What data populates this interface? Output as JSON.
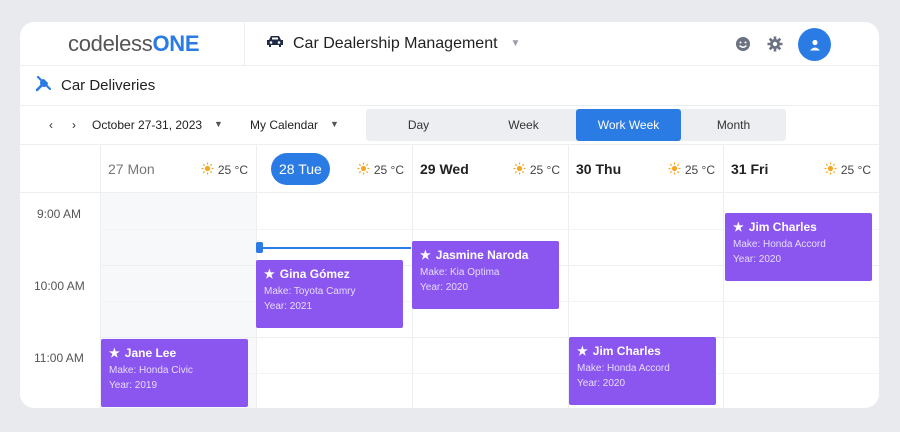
{
  "topbar": {
    "logo_prefix": "codeless",
    "logo_suffix": "ONE",
    "app_title": "Car Dealership Management",
    "title_icon": "car-icon",
    "icons": [
      "smiley-icon",
      "gear-icon",
      "user-avatar-icon"
    ]
  },
  "page": {
    "title": "Car Deliveries",
    "icon": "tools-icon"
  },
  "toolbar": {
    "prev": "‹",
    "next": "›",
    "date_range": "October 27-31, 2023",
    "calendar": "My Calendar",
    "views": [
      "Day",
      "Week",
      "Work Week",
      "Month"
    ],
    "active_view": "Work Week"
  },
  "days": [
    {
      "label": "27 Mon",
      "temp": "25 °C",
      "state": "past"
    },
    {
      "label": "28 Tue",
      "temp": "25 °C",
      "state": "today"
    },
    {
      "label": "29 Wed",
      "temp": "25 °C",
      "state": "future"
    },
    {
      "label": "30 Thu",
      "temp": "25 °C",
      "state": "future"
    },
    {
      "label": "31 Fri",
      "temp": "25 °C",
      "state": "future"
    }
  ],
  "times": [
    "9:00 AM",
    "10:00 AM",
    "11:00 AM"
  ],
  "events": [
    {
      "name": "Gina Gómez",
      "make": "Make: Toyota Camry",
      "year": "Year: 2021"
    },
    {
      "name": "Jasmine Naroda",
      "make": "Make: Kia Optima",
      "year": "Year: 2020"
    },
    {
      "name": "Jim Charles",
      "make": "Make: Honda Accord",
      "year": "Year: 2020"
    },
    {
      "name": "Jane Lee",
      "make": "Make: Honda Civic",
      "year": "Year: 2019"
    },
    {
      "name": "Jim Charles",
      "make": "Make: Honda Accord",
      "year": "Year: 2020"
    }
  ],
  "colors": {
    "accent": "#2b7be4",
    "event": "#8b55f0",
    "sun": "#f5a623"
  }
}
